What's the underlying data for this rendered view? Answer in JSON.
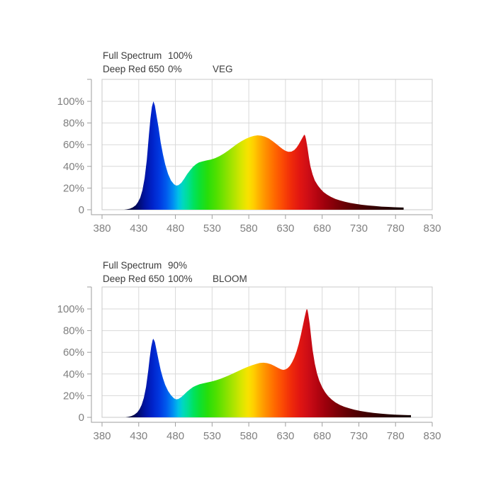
{
  "style": {
    "background": "#ffffff",
    "grid_color": "#d9d9d9",
    "plot_border_color": "#c9c9c9",
    "axis_color": "#9e9e9e",
    "tick_label_color": "#808080",
    "header_text_color": "#3c3c3c",
    "spectrum_stops": [
      [
        380,
        "#000018"
      ],
      [
        415,
        "#00022e"
      ],
      [
        428,
        "#000a64"
      ],
      [
        438,
        "#0013a0"
      ],
      [
        448,
        "#0022c8"
      ],
      [
        458,
        "#0038e0"
      ],
      [
        468,
        "#005cee"
      ],
      [
        477,
        "#0090f2"
      ],
      [
        484,
        "#00c0e8"
      ],
      [
        490,
        "#00d8c0"
      ],
      [
        497,
        "#00de96"
      ],
      [
        505,
        "#00e25c"
      ],
      [
        514,
        "#0ee02e"
      ],
      [
        524,
        "#28de0a"
      ],
      [
        536,
        "#50e000"
      ],
      [
        549,
        "#84e200"
      ],
      [
        561,
        "#b4e400"
      ],
      [
        571,
        "#dce600"
      ],
      [
        579,
        "#f8e200"
      ],
      [
        586,
        "#ffd000"
      ],
      [
        594,
        "#ffb000"
      ],
      [
        603,
        "#ff9000"
      ],
      [
        614,
        "#ff6c00"
      ],
      [
        626,
        "#fb4a04"
      ],
      [
        638,
        "#ef2a0a"
      ],
      [
        650,
        "#e01512"
      ],
      [
        661,
        "#cd0d16"
      ],
      [
        672,
        "#b70511"
      ],
      [
        684,
        "#9d000c"
      ],
      [
        698,
        "#800008"
      ],
      [
        714,
        "#640004"
      ],
      [
        733,
        "#480002"
      ],
      [
        755,
        "#310001"
      ],
      [
        778,
        "#200000"
      ],
      [
        800,
        "#160000"
      ],
      [
        830,
        "#100000"
      ]
    ]
  },
  "chart_data": [
    {
      "type": "area",
      "name": "VEG",
      "legend_rows": [
        {
          "label": "Full Spectrum",
          "value": "100%",
          "mode": ""
        },
        {
          "label": "Deep Red 650",
          "value": "0%",
          "mode": "VEG"
        }
      ],
      "xlim": [
        380,
        830
      ],
      "ylim": [
        0,
        120
      ],
      "grid": true,
      "x_ticks": [
        380,
        430,
        480,
        530,
        580,
        630,
        680,
        730,
        780,
        830
      ],
      "y_tick_values": [
        0,
        20,
        40,
        60,
        80,
        100
      ],
      "y_tick_labels": [
        "0",
        "20%",
        "40%",
        "60%",
        "80%",
        "100%"
      ],
      "points": [
        [
          410,
          0
        ],
        [
          414,
          0.4
        ],
        [
          418,
          1
        ],
        [
          422,
          2.2
        ],
        [
          426,
          4.2
        ],
        [
          429,
          7
        ],
        [
          432,
          11
        ],
        [
          435,
          18
        ],
        [
          438,
          29
        ],
        [
          441,
          46
        ],
        [
          444,
          70
        ],
        [
          446,
          84
        ],
        [
          448,
          95
        ],
        [
          450,
          100
        ],
        [
          452,
          96
        ],
        [
          454,
          88
        ],
        [
          457,
          76
        ],
        [
          460,
          62
        ],
        [
          463,
          51
        ],
        [
          466,
          42
        ],
        [
          470,
          33
        ],
        [
          474,
          27
        ],
        [
          478,
          23.5
        ],
        [
          481,
          22.3
        ],
        [
          484,
          22.6
        ],
        [
          488,
          24.8
        ],
        [
          492,
          28.6
        ],
        [
          496,
          32.8
        ],
        [
          500,
          36.4
        ],
        [
          504,
          39.6
        ],
        [
          508,
          42
        ],
        [
          512,
          43.6
        ],
        [
          517,
          44.6
        ],
        [
          522,
          45.4
        ],
        [
          528,
          46.3
        ],
        [
          534,
          47.6
        ],
        [
          540,
          49.4
        ],
        [
          546,
          51.8
        ],
        [
          552,
          54.6
        ],
        [
          558,
          57.6
        ],
        [
          564,
          60.6
        ],
        [
          570,
          63.2
        ],
        [
          576,
          65.4
        ],
        [
          582,
          67.2
        ],
        [
          587,
          68.2
        ],
        [
          592,
          68.6
        ],
        [
          597,
          68.3
        ],
        [
          602,
          67.4
        ],
        [
          607,
          65.8
        ],
        [
          612,
          63.6
        ],
        [
          617,
          61
        ],
        [
          622,
          58.2
        ],
        [
          626,
          56
        ],
        [
          630,
          54.3
        ],
        [
          634,
          53.4
        ],
        [
          638,
          53.6
        ],
        [
          642,
          55
        ],
        [
          645,
          57.2
        ],
        [
          648,
          60.2
        ],
        [
          651,
          63.8
        ],
        [
          653,
          66.3
        ],
        [
          655,
          68.6
        ],
        [
          656,
          69.3
        ],
        [
          657,
          68
        ],
        [
          658,
          65
        ],
        [
          660,
          57
        ],
        [
          662,
          48
        ],
        [
          664,
          40
        ],
        [
          667,
          32.5
        ],
        [
          670,
          27
        ],
        [
          674,
          22.5
        ],
        [
          678,
          19
        ],
        [
          682,
          16.3
        ],
        [
          687,
          13.8
        ],
        [
          692,
          11.8
        ],
        [
          698,
          10
        ],
        [
          704,
          8.6
        ],
        [
          711,
          7.3
        ],
        [
          718,
          6.3
        ],
        [
          726,
          5.4
        ],
        [
          734,
          4.6
        ],
        [
          743,
          3.9
        ],
        [
          752,
          3.4
        ],
        [
          761,
          2.9
        ],
        [
          770,
          2.6
        ],
        [
          779,
          2.3
        ],
        [
          786,
          2.1
        ],
        [
          791,
          2
        ]
      ]
    },
    {
      "type": "area",
      "name": "BLOOM",
      "legend_rows": [
        {
          "label": "Full Spectrum",
          "value": "90%",
          "mode": ""
        },
        {
          "label": "Deep Red 650",
          "value": "100%",
          "mode": "BLOOM"
        }
      ],
      "xlim": [
        380,
        830
      ],
      "ylim": [
        0,
        120
      ],
      "grid": true,
      "x_ticks": [
        380,
        430,
        480,
        530,
        580,
        630,
        680,
        730,
        780,
        830
      ],
      "y_tick_values": [
        0,
        20,
        40,
        60,
        80,
        100
      ],
      "y_tick_labels": [
        "0",
        "20%",
        "40%",
        "60%",
        "80%",
        "100%"
      ],
      "points": [
        [
          412,
          0
        ],
        [
          416,
          0.5
        ],
        [
          420,
          1.2
        ],
        [
          424,
          2.4
        ],
        [
          428,
          4.6
        ],
        [
          431,
          7.4
        ],
        [
          434,
          11.5
        ],
        [
          437,
          18
        ],
        [
          440,
          28
        ],
        [
          443,
          43
        ],
        [
          445,
          55
        ],
        [
          447,
          65
        ],
        [
          449,
          71.5
        ],
        [
          450,
          72.5
        ],
        [
          452,
          69.5
        ],
        [
          454,
          63
        ],
        [
          457,
          53
        ],
        [
          460,
          43.5
        ],
        [
          463,
          36
        ],
        [
          466,
          30
        ],
        [
          470,
          24.4
        ],
        [
          474,
          20.4
        ],
        [
          478,
          17.6
        ],
        [
          481,
          16.6
        ],
        [
          484,
          16.9
        ],
        [
          488,
          18.6
        ],
        [
          492,
          21.2
        ],
        [
          496,
          23.8
        ],
        [
          500,
          26
        ],
        [
          504,
          27.9
        ],
        [
          508,
          29.3
        ],
        [
          513,
          30.5
        ],
        [
          518,
          31.4
        ],
        [
          524,
          32.3
        ],
        [
          530,
          33.2
        ],
        [
          536,
          34.3
        ],
        [
          542,
          35.7
        ],
        [
          548,
          37.3
        ],
        [
          554,
          39
        ],
        [
          560,
          40.9
        ],
        [
          566,
          42.8
        ],
        [
          572,
          44.7
        ],
        [
          578,
          46.4
        ],
        [
          584,
          48
        ],
        [
          590,
          49.3
        ],
        [
          595,
          50.1
        ],
        [
          600,
          50.4
        ],
        [
          605,
          50
        ],
        [
          610,
          49
        ],
        [
          615,
          47.4
        ],
        [
          620,
          45.6
        ],
        [
          624,
          44.3
        ],
        [
          627,
          43.8
        ],
        [
          630,
          44.2
        ],
        [
          633,
          45.4
        ],
        [
          636,
          47.6
        ],
        [
          639,
          50.8
        ],
        [
          642,
          55
        ],
        [
          645,
          60.5
        ],
        [
          648,
          67.5
        ],
        [
          651,
          76
        ],
        [
          654,
          85.5
        ],
        [
          656,
          92
        ],
        [
          658,
          98
        ],
        [
          659,
          100
        ],
        [
          660,
          99
        ],
        [
          661,
          95.5
        ],
        [
          663,
          86
        ],
        [
          665,
          74
        ],
        [
          667,
          62
        ],
        [
          670,
          49.5
        ],
        [
          673,
          40.5
        ],
        [
          676,
          34
        ],
        [
          680,
          27.8
        ],
        [
          684,
          23.2
        ],
        [
          688,
          19.6
        ],
        [
          693,
          16.4
        ],
        [
          698,
          13.8
        ],
        [
          704,
          11.5
        ],
        [
          710,
          9.8
        ],
        [
          717,
          8.3
        ],
        [
          724,
          7
        ],
        [
          732,
          5.9
        ],
        [
          741,
          4.9
        ],
        [
          750,
          4.1
        ],
        [
          760,
          3.4
        ],
        [
          770,
          2.9
        ],
        [
          780,
          2.5
        ],
        [
          790,
          2.2
        ],
        [
          797,
          2.05
        ],
        [
          801,
          2
        ]
      ]
    }
  ]
}
